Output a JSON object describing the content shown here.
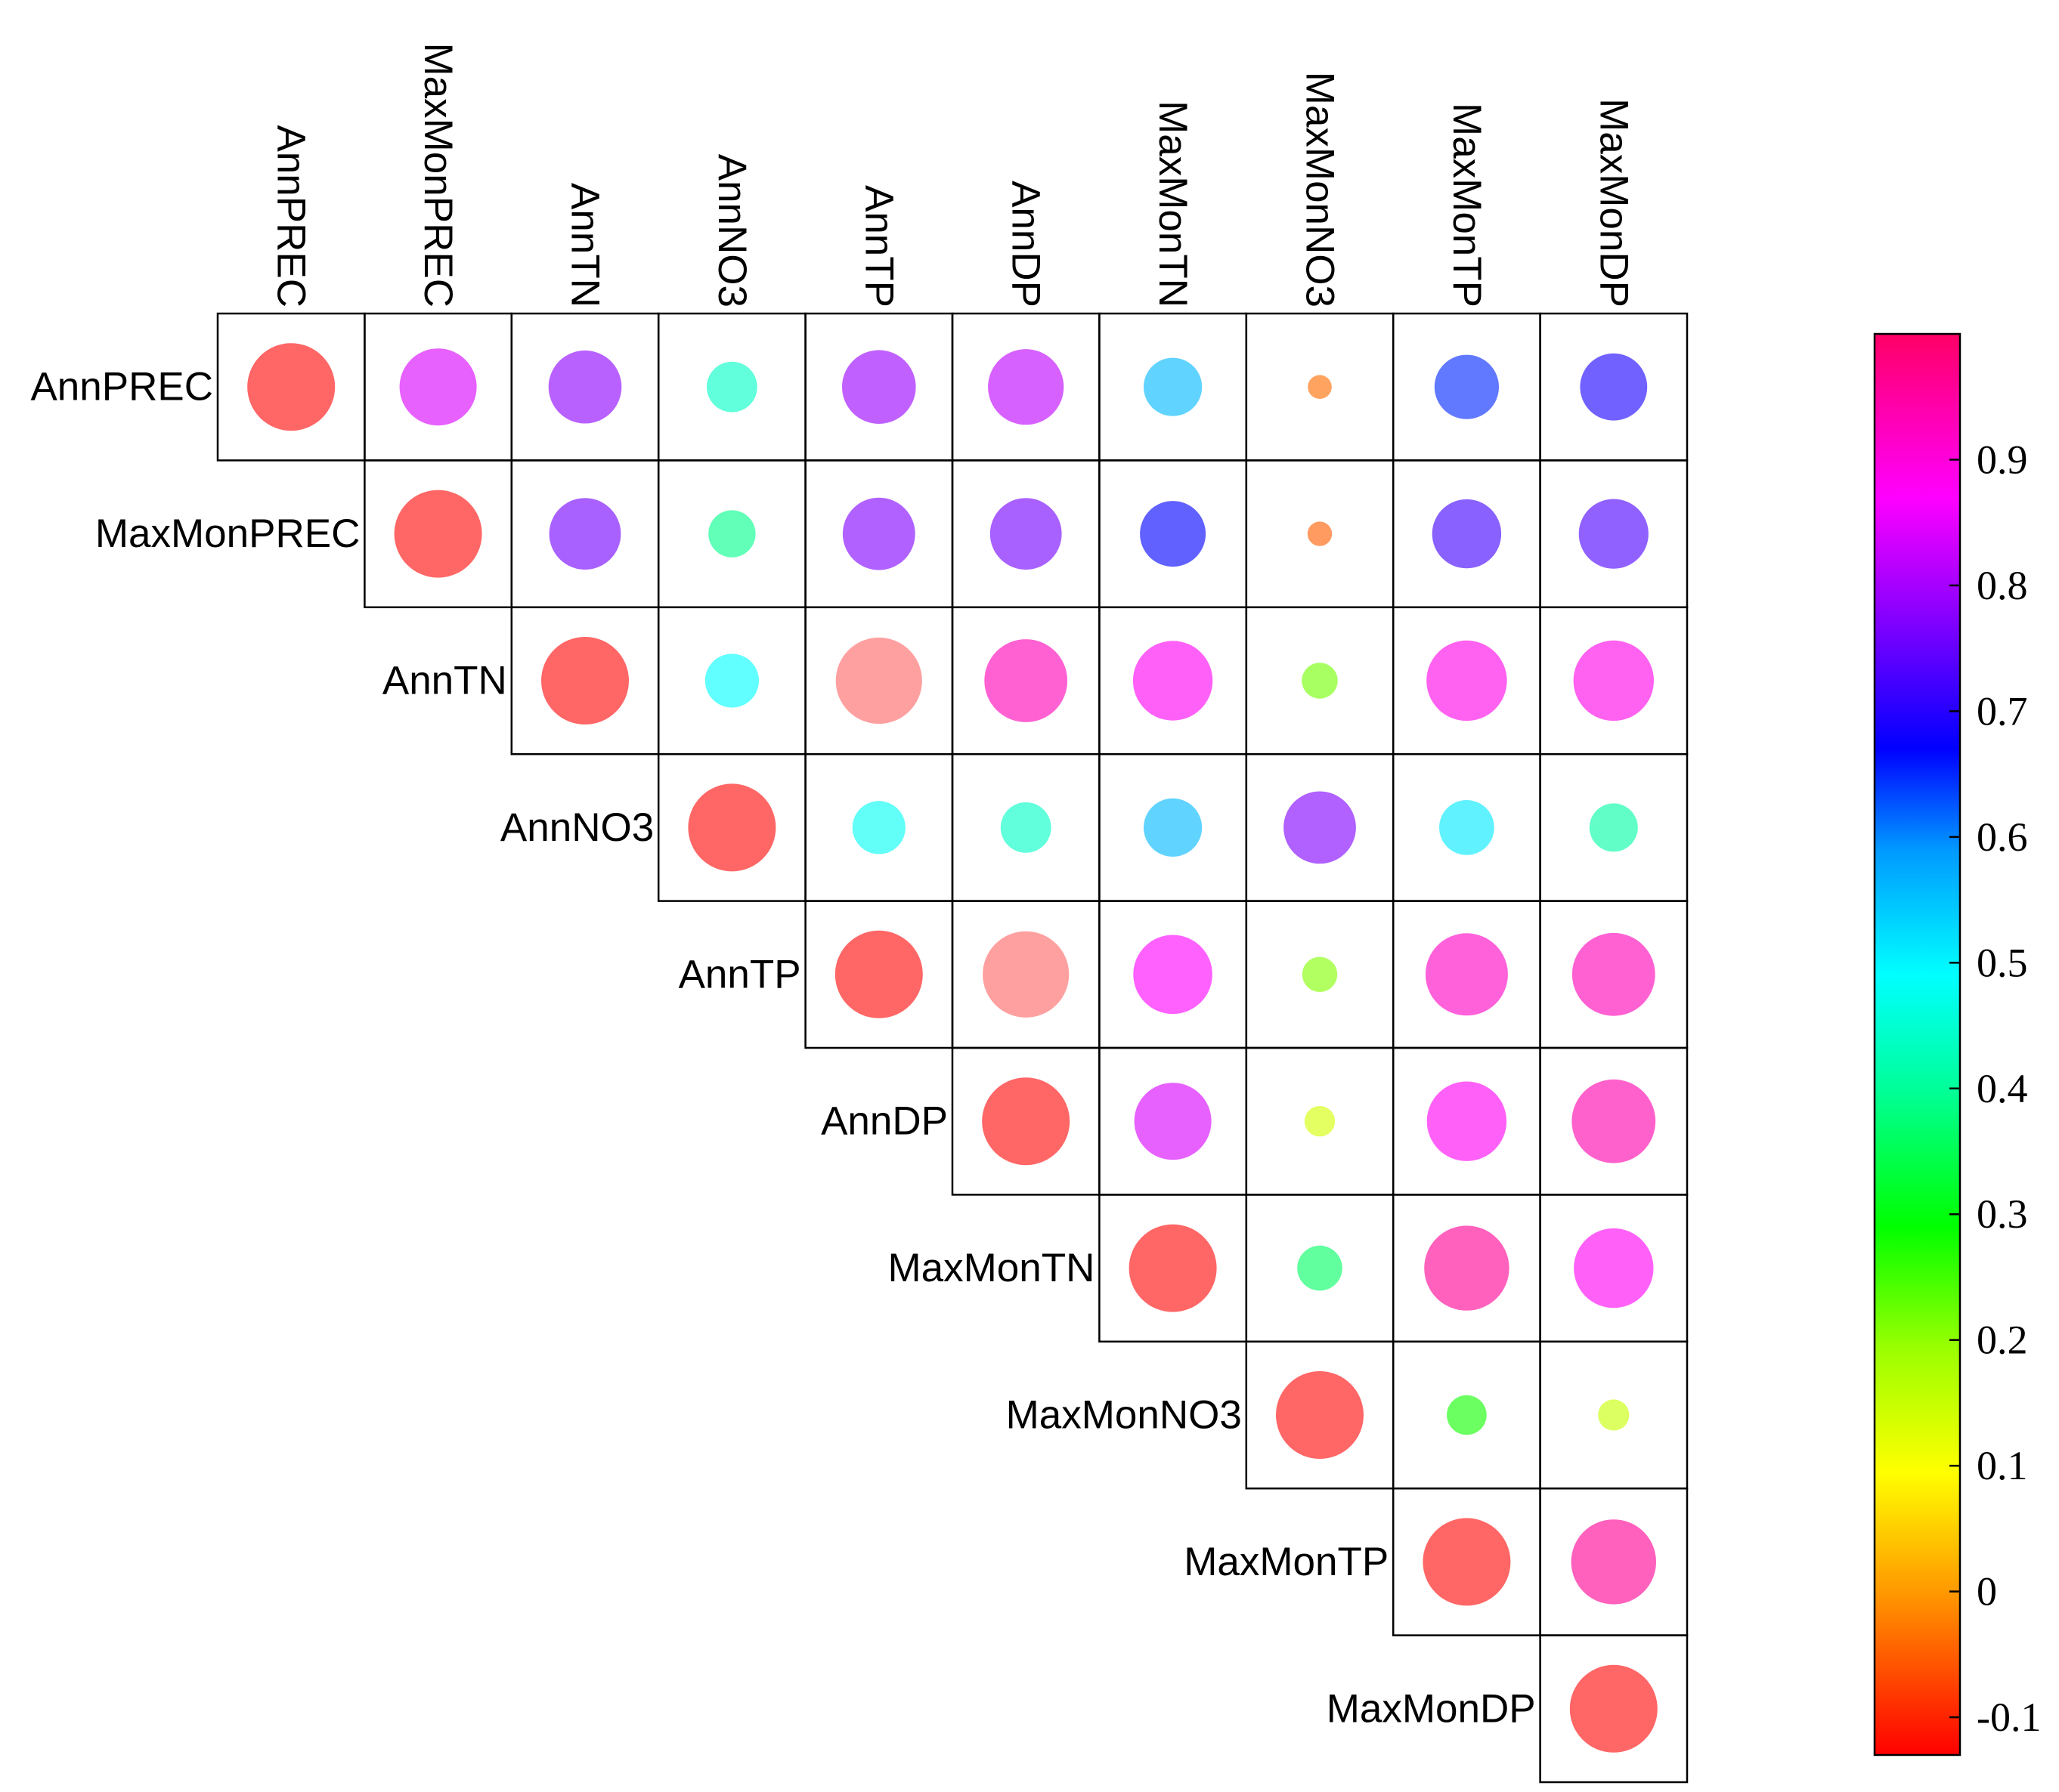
{
  "chart_data": {
    "type": "heatmap",
    "variables": [
      "AnnPREC",
      "MaxMonPREC",
      "AnnTN",
      "AnnNO3",
      "AnnTP",
      "AnnDP",
      "MaxMonTN",
      "MaxMonNO3",
      "MaxMonTP",
      "MaxMonDP"
    ],
    "matrix": [
      [
        1.0,
        0.84,
        0.78,
        0.44,
        0.79,
        0.82,
        0.56,
        -0.04,
        0.65,
        0.69
      ],
      [
        null,
        1.0,
        0.76,
        0.39,
        0.77,
        0.76,
        0.67,
        -0.05,
        0.72,
        0.73
      ],
      [
        null,
        null,
        1.0,
        0.49,
        0.98,
        0.93,
        0.88,
        0.22,
        0.89,
        0.89
      ],
      [
        null,
        null,
        null,
        1.0,
        0.48,
        0.44,
        0.56,
        0.77,
        0.51,
        0.41
      ],
      [
        null,
        null,
        null,
        null,
        1.0,
        0.98,
        0.87,
        0.21,
        0.92,
        0.93
      ],
      [
        null,
        null,
        null,
        null,
        null,
        1.0,
        0.84,
        0.14,
        0.88,
        0.94
      ],
      [
        null,
        null,
        null,
        null,
        null,
        null,
        1.0,
        0.36,
        0.96,
        0.88
      ],
      [
        null,
        null,
        null,
        null,
        null,
        null,
        null,
        1.0,
        0.28,
        0.15
      ],
      [
        null,
        null,
        null,
        null,
        null,
        null,
        null,
        null,
        1.0,
        0.96
      ],
      [
        null,
        null,
        null,
        null,
        null,
        null,
        null,
        null,
        null,
        1.0
      ]
    ],
    "colorbar": {
      "min": -0.13,
      "max": 1.0,
      "ticks": [
        -0.1,
        0,
        0.1,
        0.2,
        0.3,
        0.4,
        0.5,
        0.6,
        0.7,
        0.8,
        0.9
      ],
      "tick_labels": [
        "-0.1",
        "0",
        "0.1",
        "0.2",
        "0.3",
        "0.4",
        "0.5",
        "0.6",
        "0.7",
        "0.8",
        "0.9"
      ]
    }
  }
}
